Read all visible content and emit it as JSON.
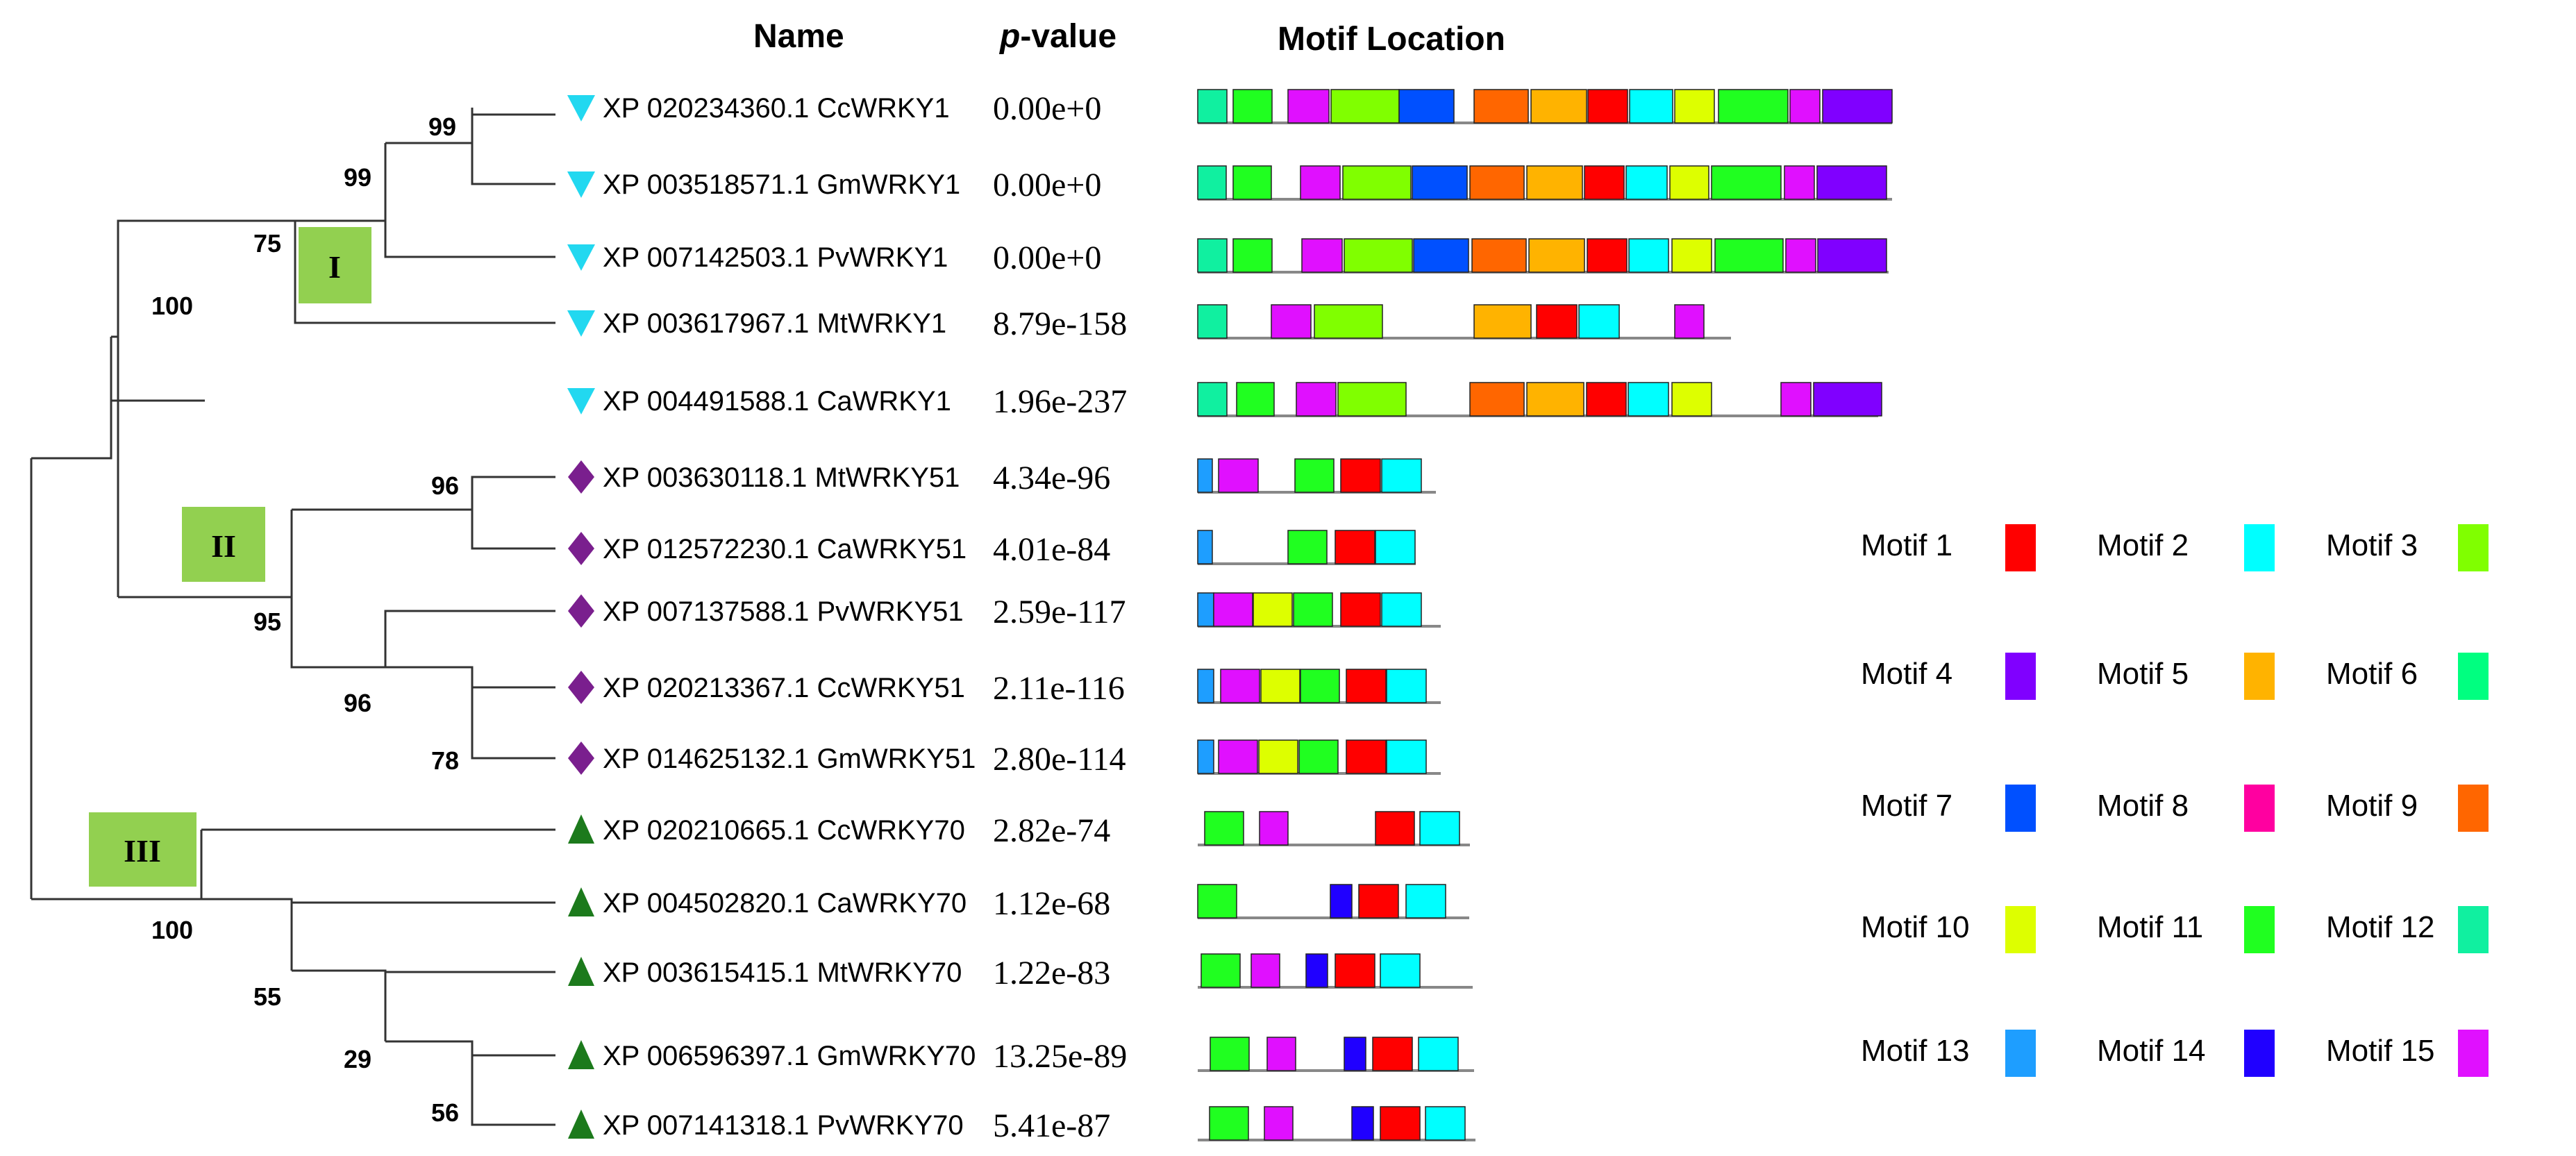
{
  "headers": {
    "name": "Name",
    "p_prefix": "p",
    "p_suffix": "-value",
    "motif_location": "Motif Location"
  },
  "clades": [
    "I",
    "II",
    "III"
  ],
  "bootstrap": [
    "99",
    "99",
    "75",
    "100",
    "96",
    "95",
    "96",
    "78",
    "100",
    "55",
    "29",
    "56"
  ],
  "genes": [
    {
      "name": "XP 020234360.1 CcWRKY1",
      "pvalue": "0.00e+0",
      "group": "I",
      "seq_len": 1000,
      "motifs": [
        [
          12,
          0,
          42
        ],
        [
          11,
          51,
          56
        ],
        [
          15,
          130,
          59
        ],
        [
          3,
          192,
          98
        ],
        [
          7,
          290,
          79
        ],
        [
          9,
          398,
          78
        ],
        [
          5,
          480,
          80
        ],
        [
          1,
          562,
          57
        ],
        [
          2,
          622,
          62
        ],
        [
          10,
          687,
          57
        ],
        [
          11,
          750,
          100
        ],
        [
          15,
          853,
          43
        ],
        [
          4,
          900,
          100
        ]
      ]
    },
    {
      "name": "XP 003518571.1 GmWRKY1",
      "pvalue": "0.00e+0",
      "group": "I",
      "seq_len": 1000,
      "motifs": [
        [
          12,
          0,
          41
        ],
        [
          11,
          51,
          55
        ],
        [
          15,
          148,
          57
        ],
        [
          3,
          209,
          98
        ],
        [
          7,
          309,
          79
        ],
        [
          9,
          392,
          78
        ],
        [
          5,
          474,
          80
        ],
        [
          1,
          557,
          57
        ],
        [
          2,
          617,
          59
        ],
        [
          10,
          680,
          56
        ],
        [
          11,
          740,
          100
        ],
        [
          15,
          845,
          43
        ],
        [
          4,
          892,
          100
        ]
      ]
    },
    {
      "name": "XP 007142503.1 PvWRKY1",
      "pvalue": "0.00e+0",
      "group": "I",
      "seq_len": 995,
      "motifs": [
        [
          12,
          0,
          42
        ],
        [
          11,
          51,
          56
        ],
        [
          15,
          150,
          58
        ],
        [
          3,
          211,
          98
        ],
        [
          7,
          311,
          79
        ],
        [
          9,
          395,
          78
        ],
        [
          5,
          477,
          80
        ],
        [
          1,
          561,
          57
        ],
        [
          2,
          621,
          57
        ],
        [
          10,
          683,
          57
        ],
        [
          11,
          745,
          98
        ],
        [
          15,
          847,
          43
        ],
        [
          4,
          893,
          99
        ]
      ]
    },
    {
      "name": "XP 003617967.1 MtWRKY1",
      "pvalue": "8.79e-158",
      "group": "I",
      "seq_len": 768,
      "motifs": [
        [
          12,
          0,
          42
        ],
        [
          15,
          106,
          57
        ],
        [
          3,
          168,
          98
        ],
        [
          5,
          398,
          82
        ],
        [
          1,
          488,
          58
        ],
        [
          2,
          549,
          58
        ],
        [
          15,
          687,
          42
        ]
      ]
    },
    {
      "name": "XP 004491588.1 CaWRKY1",
      "pvalue": "1.96e-237",
      "group": "I",
      "seq_len": 980,
      "motifs": [
        [
          12,
          0,
          42
        ],
        [
          11,
          56,
          54
        ],
        [
          15,
          142,
          57
        ],
        [
          3,
          202,
          98
        ],
        [
          9,
          392,
          78
        ],
        [
          5,
          474,
          82
        ],
        [
          1,
          560,
          57
        ],
        [
          2,
          620,
          58
        ],
        [
          10,
          683,
          57
        ],
        [
          15,
          840,
          43
        ],
        [
          4,
          887,
          98
        ]
      ]
    },
    {
      "name": "XP 003630118.1 MtWRKY51",
      "pvalue": "4.34e-96",
      "group": "II",
      "seq_len": 343,
      "motifs": [
        [
          13,
          0,
          21
        ],
        [
          15,
          30,
          57
        ],
        [
          11,
          140,
          56
        ],
        [
          1,
          206,
          57
        ],
        [
          2,
          265,
          57
        ]
      ]
    },
    {
      "name": "XP 012572230.1 CaWRKY51",
      "pvalue": "4.01e-84",
      "group": "II",
      "seq_len": 314,
      "motifs": [
        [
          13,
          0,
          21
        ],
        [
          11,
          130,
          56
        ],
        [
          1,
          198,
          57
        ],
        [
          2,
          256,
          57
        ]
      ]
    },
    {
      "name": "XP 007137588.1 PvWRKY51",
      "pvalue": "2.59e-117",
      "group": "II",
      "seq_len": 350,
      "motifs": [
        [
          13,
          0,
          23
        ],
        [
          15,
          23,
          56
        ],
        [
          10,
          80,
          56
        ],
        [
          11,
          138,
          56
        ],
        [
          1,
          206,
          57
        ],
        [
          2,
          265,
          57
        ]
      ]
    },
    {
      "name": "XP 020213367.1 CcWRKY51",
      "pvalue": "2.11e-116",
      "group": "II",
      "seq_len": 350,
      "motifs": [
        [
          13,
          0,
          23
        ],
        [
          15,
          33,
          56
        ],
        [
          10,
          91,
          56
        ],
        [
          11,
          148,
          56
        ],
        [
          1,
          214,
          57
        ],
        [
          2,
          272,
          57
        ]
      ]
    },
    {
      "name": "XP 014625132.1 GmWRKY51",
      "pvalue": "2.80e-114",
      "group": "II",
      "seq_len": 350,
      "motifs": [
        [
          13,
          0,
          23
        ],
        [
          15,
          30,
          56
        ],
        [
          10,
          88,
          56
        ],
        [
          11,
          146,
          56
        ],
        [
          1,
          214,
          57
        ],
        [
          2,
          272,
          57
        ]
      ]
    },
    {
      "name": "XP 020210665.1 CcWRKY70",
      "pvalue": "2.82e-74",
      "group": "III",
      "seq_len": 392,
      "motifs": [
        [
          11,
          10,
          56
        ],
        [
          15,
          89,
          41
        ],
        [
          1,
          256,
          56
        ],
        [
          2,
          320,
          57
        ]
      ]
    },
    {
      "name": "XP 004502820.1 CaWRKY70",
      "pvalue": "1.12e-68",
      "group": "III",
      "seq_len": 391,
      "motifs": [
        [
          11,
          0,
          56
        ],
        [
          14,
          191,
          31
        ],
        [
          1,
          232,
          57
        ],
        [
          2,
          300,
          57
        ]
      ]
    },
    {
      "name": "XP 003615415.1 MtWRKY70",
      "pvalue": "1.22e-83",
      "group": "III",
      "seq_len": 396,
      "motifs": [
        [
          11,
          5,
          56
        ],
        [
          15,
          77,
          41
        ],
        [
          14,
          156,
          31
        ],
        [
          1,
          198,
          57
        ],
        [
          2,
          263,
          57
        ]
      ]
    },
    {
      "name": "XP 006596397.1 GmWRKY70",
      "pvalue": "13.25e-89",
      "group": "III",
      "seq_len": 398,
      "motifs": [
        [
          11,
          18,
          56
        ],
        [
          15,
          100,
          41
        ],
        [
          14,
          211,
          31
        ],
        [
          1,
          252,
          57
        ],
        [
          2,
          318,
          57
        ]
      ]
    },
    {
      "name": "XP 007141318.1 PvWRKY70",
      "pvalue": "5.41e-87",
      "group": "III",
      "seq_len": 400,
      "motifs": [
        [
          11,
          17,
          56
        ],
        [
          15,
          96,
          41
        ],
        [
          14,
          222,
          31
        ],
        [
          1,
          263,
          57
        ],
        [
          2,
          328,
          57
        ]
      ]
    }
  ],
  "legend": [
    {
      "id": 1,
      "label": "Motif 1",
      "color": "#FF0000"
    },
    {
      "id": 2,
      "label": "Motif 2",
      "color": "#00FFFF"
    },
    {
      "id": 3,
      "label": "Motif 3",
      "color": "#80FF00"
    },
    {
      "id": 4,
      "label": "Motif 4",
      "color": "#8000FF"
    },
    {
      "id": 5,
      "label": "Motif 5",
      "color": "#FFB300"
    },
    {
      "id": 6,
      "label": "Motif 6",
      "color": "#00FF80"
    },
    {
      "id": 7,
      "label": "Motif 7",
      "color": "#0050FF"
    },
    {
      "id": 8,
      "label": "Motif 8",
      "color": "#FF00A0"
    },
    {
      "id": 9,
      "label": "Motif 9",
      "color": "#FF6600"
    },
    {
      "id": 10,
      "label": "Motif 10",
      "color": "#DDFF00"
    },
    {
      "id": 11,
      "label": "Motif 11",
      "color": "#20FF20"
    },
    {
      "id": 12,
      "label": "Motif 12",
      "color": "#10F0A0"
    },
    {
      "id": 13,
      "label": "Motif 13",
      "color": "#1E9EFF"
    },
    {
      "id": 14,
      "label": "Motif 14",
      "color": "#2000FF"
    },
    {
      "id": 15,
      "label": "Motif 15",
      "color": "#E010FF"
    }
  ],
  "colors": {
    "motifs": {
      "1": "#FF0000",
      "2": "#00FFFF",
      "3": "#80FF00",
      "4": "#8000FF",
      "5": "#FFB300",
      "6": "#00FF80",
      "7": "#0050FF",
      "8": "#FF00A0",
      "9": "#FF6600",
      "10": "#DDFF00",
      "11": "#20FF20",
      "12": "#10F0A0",
      "13": "#1E9EFF",
      "14": "#2000FF",
      "15": "#E010FF"
    },
    "clade_box": "#92D050",
    "group_I": "#22D8F0",
    "group_II": "#7A1F8E",
    "group_III": "#1C7A1C"
  }
}
